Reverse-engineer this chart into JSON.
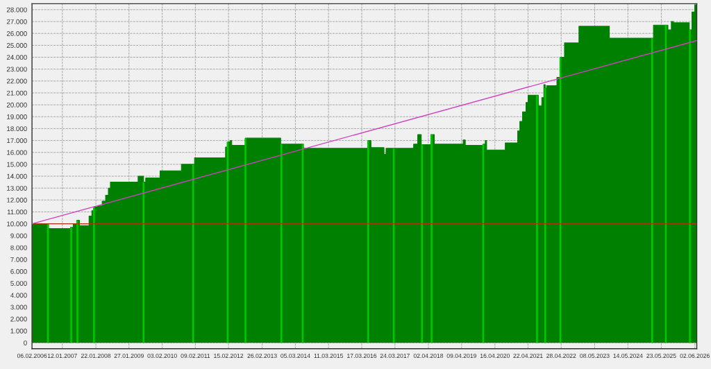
{
  "chart_data": {
    "type": "area",
    "xlim": [
      "2006-02-06",
      "2026-06-24"
    ],
    "xticks": [
      {
        "value": "2006-02-06",
        "label": "06.02.2006"
      },
      {
        "value": "2007-01-12",
        "label": "12.01.2007"
      },
      {
        "value": "2008-01-22",
        "label": "22.01.2008"
      },
      {
        "value": "2009-01-27",
        "label": "27.01.2009"
      },
      {
        "value": "2010-02-03",
        "label": "03.02.2010"
      },
      {
        "value": "2011-02-09",
        "label": "09.02.2011"
      },
      {
        "value": "2012-02-15",
        "label": "15.02.2012"
      },
      {
        "value": "2013-02-26",
        "label": "26.02.2013"
      },
      {
        "value": "2014-03-05",
        "label": "05.03.2014"
      },
      {
        "value": "2015-03-11",
        "label": "11.03.2015"
      },
      {
        "value": "2016-03-17",
        "label": "17.03.2016"
      },
      {
        "value": "2017-03-24",
        "label": "24.03.2017"
      },
      {
        "value": "2018-04-02",
        "label": "02.04.2018"
      },
      {
        "value": "2019-04-09",
        "label": "09.04.2019"
      },
      {
        "value": "2020-04-16",
        "label": "16.04.2020"
      },
      {
        "value": "2021-04-22",
        "label": "22.04.2021"
      },
      {
        "value": "2022-04-28",
        "label": "28.04.2022"
      },
      {
        "value": "2023-05-08",
        "label": "08.05.2023"
      },
      {
        "value": "2024-05-14",
        "label": "14.05.2024"
      },
      {
        "value": "2025-05-23",
        "label": "23.05.2025"
      },
      {
        "value": "2026-06-02",
        "label": "02.06.2026"
      }
    ],
    "ylim": [
      -500,
      28500
    ],
    "yticks": [
      0,
      {
        "value": 1000,
        "label": "1.000"
      },
      {
        "value": 2000,
        "label": "2.000"
      },
      {
        "value": 3000,
        "label": "3.000"
      },
      {
        "value": 4000,
        "label": "4.000"
      },
      {
        "value": 5000,
        "label": "5.000"
      },
      {
        "value": 6000,
        "label": "6.000"
      },
      {
        "value": 7000,
        "label": "7.000"
      },
      {
        "value": 8000,
        "label": "8.000"
      },
      {
        "value": 9000,
        "label": "9.000"
      },
      {
        "value": 10000,
        "label": "10.000"
      },
      {
        "value": 11000,
        "label": "11.000"
      },
      {
        "value": 12000,
        "label": "12.000"
      },
      {
        "value": 13000,
        "label": "13.000"
      },
      {
        "value": 14000,
        "label": "14.000"
      },
      {
        "value": 15000,
        "label": "15.000"
      },
      {
        "value": 16000,
        "label": "16.000"
      },
      {
        "value": 17000,
        "label": "17.000"
      },
      {
        "value": 18000,
        "label": "18.000"
      },
      {
        "value": 19000,
        "label": "19.000"
      },
      {
        "value": 20000,
        "label": "20.000"
      },
      {
        "value": 21000,
        "label": "21.000"
      },
      {
        "value": 22000,
        "label": "22.000"
      },
      {
        "value": 23000,
        "label": "23.000"
      },
      {
        "value": 24000,
        "label": "24.000"
      },
      {
        "value": 25000,
        "label": "25.000"
      },
      {
        "value": 26000,
        "label": "26.000"
      },
      {
        "value": 27000,
        "label": "27.000"
      },
      {
        "value": 28000,
        "label": "28.000"
      }
    ],
    "grid": true,
    "series": [
      {
        "color": "#008000",
        "x": [
          "2006-02-06",
          "2006-08-10",
          "2006-08-10",
          "2007-04-13",
          "2007-04-13",
          "2007-05-14",
          "2007-05-14",
          "2007-06-22",
          "2007-06-22",
          "2007-07-22",
          "2007-07-22",
          "2007-11-07",
          "2007-11-07",
          "2007-12-08",
          "2007-12-08",
          "2008-01-01",
          "2008-01-01",
          "2008-02-08",
          "2008-02-08",
          "2008-04-02",
          "2008-04-02",
          "2008-05-10",
          "2008-05-10",
          "2008-06-10",
          "2008-06-10",
          "2008-07-03",
          "2008-07-03",
          "2009-05-09",
          "2009-05-09",
          "2009-07-09",
          "2009-07-09",
          "2009-08-02",
          "2009-08-02",
          "2010-01-10",
          "2010-01-10",
          "2010-09-06",
          "2010-09-06",
          "2011-01-31",
          "2011-01-31",
          "2012-01-13",
          "2012-01-13",
          "2012-02-13",
          "2012-02-13",
          "2012-03-07",
          "2012-03-07",
          "2012-03-22",
          "2012-03-22",
          "2012-08-23",
          "2012-08-23",
          "2013-09-21",
          "2013-09-21",
          "2014-06-03",
          "2014-06-03",
          "2016-05-28",
          "2016-05-28",
          "2016-06-28",
          "2016-06-28",
          "2016-11-21",
          "2016-11-21",
          "2016-12-14",
          "2016-12-14",
          "2017-10-19",
          "2017-10-19",
          "2017-12-04",
          "2017-12-04",
          "2018-01-12",
          "2018-01-12",
          "2018-04-30",
          "2018-04-30",
          "2018-06-07",
          "2018-06-07",
          "2019-04-27",
          "2019-04-27",
          "2019-05-20",
          "2019-05-20",
          "2019-12-07",
          "2019-12-07",
          "2019-12-30",
          "2019-12-30",
          "2020-01-14",
          "2020-01-14",
          "2020-08-10",
          "2020-08-10",
          "2020-12-27",
          "2020-12-27",
          "2021-01-20",
          "2021-01-20",
          "2021-02-19",
          "2021-02-19",
          "2021-03-30",
          "2021-03-30",
          "2021-04-22",
          "2021-04-22",
          "2021-08-15",
          "2021-08-15",
          "2021-09-23",
          "2021-09-23",
          "2021-10-16",
          "2021-10-16",
          "2021-10-31",
          "2021-10-31",
          "2021-11-16",
          "2021-11-16",
          "2022-03-11",
          "2022-03-11",
          "2022-04-19",
          "2022-04-19",
          "2022-06-04",
          "2022-06-04",
          "2022-11-13",
          "2022-11-13",
          "2023-10-19",
          "2023-10-19",
          "2025-02-24",
          "2025-02-24",
          "2025-08-05",
          "2025-08-05",
          "2025-09-12",
          "2025-09-12",
          "2025-10-05",
          "2025-10-05",
          "2026-04-01",
          "2026-04-01",
          "2026-05-01",
          "2026-05-01",
          "2026-06-01",
          "2026-06-01",
          "2026-06-17",
          "2026-06-17",
          "2026-06-24"
        ],
        "values": [
          10000,
          10000,
          9600,
          9600,
          9700,
          9700,
          10000,
          10000,
          10300,
          10300,
          9850,
          9850,
          10650,
          10650,
          11100,
          11100,
          11400,
          11400,
          11500,
          11500,
          11900,
          11900,
          12400,
          12400,
          13000,
          13000,
          13500,
          13500,
          14000,
          14000,
          13500,
          13500,
          13850,
          13850,
          14450,
          14450,
          15000,
          15000,
          15550,
          15550,
          16450,
          16450,
          16900,
          16900,
          17000,
          17000,
          16600,
          16600,
          17200,
          17200,
          16700,
          16700,
          16350,
          16350,
          17000,
          17000,
          16400,
          16400,
          15850,
          15850,
          16350,
          16350,
          16700,
          16700,
          17500,
          17500,
          16650,
          16650,
          17500,
          17500,
          16700,
          16700,
          17050,
          17050,
          16600,
          16600,
          16700,
          16700,
          17000,
          17000,
          16200,
          16200,
          16800,
          16800,
          17800,
          17800,
          18600,
          18600,
          19400,
          19400,
          20200,
          20200,
          20800,
          20800,
          19900,
          19900,
          20600,
          20600,
          21700,
          21700,
          21400,
          21400,
          21600,
          21600,
          22300,
          22300,
          24000,
          24000,
          25200,
          25200,
          26600,
          26600,
          25600,
          25600,
          26700,
          26700,
          26300,
          26300,
          27000,
          27000,
          26900,
          26900,
          26300,
          26300,
          27800,
          27800,
          28400,
          28400,
          26800,
          26800
        ]
      },
      {
        "type": "bar",
        "color": "#00c800",
        "x": [
          "2006-08-03",
          "2007-04-21",
          "2007-06-30",
          "2008-01-01",
          "2009-07-09",
          "2011-01-16",
          "2012-02-05",
          "2012-08-23",
          "2013-09-29",
          "2014-05-26",
          "2016-05-28",
          "2017-03-10",
          "2018-01-20",
          "2018-05-08",
          "2019-12-07",
          "2021-07-31",
          "2021-10-31",
          "2022-04-19",
          "2025-02-09",
          "2025-07-13",
          "2026-04-08"
        ],
        "values": [
          10000,
          9700,
          10300,
          11400,
          13500,
          15000,
          16900,
          17200,
          16700,
          16700,
          17000,
          16350,
          16650,
          17500,
          16700,
          20800,
          21400,
          24000,
          25600,
          26700,
          26300
        ]
      },
      {
        "type": "line",
        "color": "#d040c0",
        "x": [
          "2006-02-06",
          "2026-06-24"
        ],
        "values": [
          10000,
          25400
        ]
      }
    ],
    "ref_lines": [
      {
        "axis": "y",
        "value": 10000,
        "color": "#b03010"
      }
    ]
  }
}
